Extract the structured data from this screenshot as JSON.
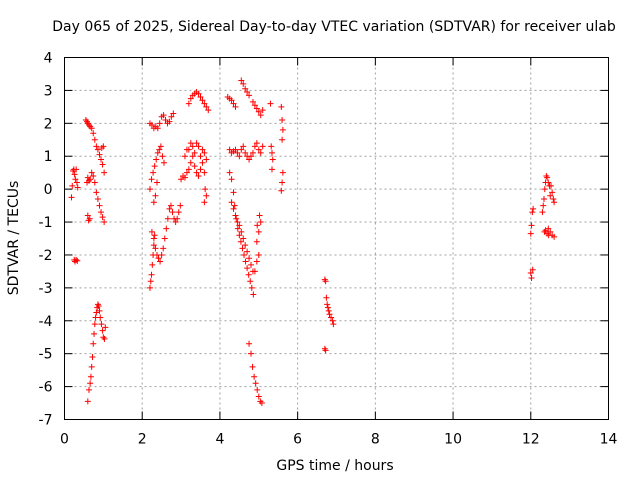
{
  "chart_data": {
    "type": "scatter",
    "title": "Day 065 of 2025, Sidereal Day-to-day VTEC variation (SDTVAR) for receiver ulab",
    "xlabel": "GPS time / hours",
    "ylabel": "SDTVAR / TECUs",
    "xlim": [
      0,
      14
    ],
    "ylim": [
      -7,
      4
    ],
    "xticks": [
      0,
      2,
      4,
      6,
      8,
      10,
      12,
      14
    ],
    "yticks": [
      -7,
      -6,
      -5,
      -4,
      -3,
      -2,
      -1,
      0,
      1,
      2,
      3,
      4
    ],
    "grid": true,
    "marker": "+",
    "series": [
      {
        "name": "SDTVAR",
        "color": "#ff0000",
        "points": [
          [
            0.18,
            -0.25
          ],
          [
            0.2,
            0.1
          ],
          [
            0.22,
            0.55
          ],
          [
            0.24,
            0.6
          ],
          [
            0.26,
            0.45
          ],
          [
            0.28,
            0.3
          ],
          [
            0.3,
            0.6
          ],
          [
            0.32,
            0.2
          ],
          [
            0.34,
            0.05
          ],
          [
            0.25,
            -2.15
          ],
          [
            0.27,
            -2.2
          ],
          [
            0.3,
            -2.15
          ],
          [
            0.33,
            -2.18
          ],
          [
            0.55,
            2.1
          ],
          [
            0.58,
            2.05
          ],
          [
            0.6,
            2.0
          ],
          [
            0.63,
            1.95
          ],
          [
            0.66,
            1.9
          ],
          [
            0.7,
            1.85
          ],
          [
            0.74,
            1.7
          ],
          [
            0.78,
            1.5
          ],
          [
            0.82,
            1.3
          ],
          [
            0.86,
            1.2
          ],
          [
            0.9,
            1.05
          ],
          [
            0.94,
            0.9
          ],
          [
            0.98,
            0.75
          ],
          [
            1.02,
            0.5
          ],
          [
            0.96,
            1.25
          ],
          [
            1.0,
            1.3
          ],
          [
            0.58,
            0.2
          ],
          [
            0.6,
            0.35
          ],
          [
            0.63,
            0.25
          ],
          [
            0.66,
            0.3
          ],
          [
            0.7,
            0.5
          ],
          [
            0.74,
            0.4
          ],
          [
            0.78,
            0.2
          ],
          [
            0.82,
            -0.1
          ],
          [
            0.86,
            -0.3
          ],
          [
            0.9,
            -0.5
          ],
          [
            0.94,
            -0.7
          ],
          [
            0.98,
            -0.85
          ],
          [
            1.02,
            -1.0
          ],
          [
            0.6,
            -0.8
          ],
          [
            0.62,
            -0.95
          ],
          [
            0.65,
            -0.9
          ],
          [
            0.6,
            -6.45
          ],
          [
            0.63,
            -6.1
          ],
          [
            0.66,
            -5.9
          ],
          [
            0.68,
            -5.7
          ],
          [
            0.7,
            -5.4
          ],
          [
            0.72,
            -5.1
          ],
          [
            0.74,
            -4.7
          ],
          [
            0.76,
            -4.4
          ],
          [
            0.78,
            -4.1
          ],
          [
            0.8,
            -3.9
          ],
          [
            0.82,
            -3.75
          ],
          [
            0.84,
            -3.6
          ],
          [
            0.86,
            -3.5
          ],
          [
            0.88,
            -3.55
          ],
          [
            0.9,
            -3.7
          ],
          [
            0.92,
            -3.9
          ],
          [
            0.95,
            -4.1
          ],
          [
            0.98,
            -4.3
          ],
          [
            1.0,
            -4.5
          ],
          [
            1.03,
            -4.55
          ],
          [
            1.05,
            -4.2
          ],
          [
            2.2,
            -3.0
          ],
          [
            2.22,
            -2.8
          ],
          [
            2.24,
            -2.6
          ],
          [
            2.26,
            -2.3
          ],
          [
            2.28,
            -2.0
          ],
          [
            2.3,
            -1.7
          ],
          [
            2.32,
            -1.4
          ],
          [
            2.25,
            -1.3
          ],
          [
            2.3,
            -1.5
          ],
          [
            2.34,
            -1.8
          ],
          [
            2.38,
            -2.0
          ],
          [
            2.42,
            -2.1
          ],
          [
            2.46,
            -2.2
          ],
          [
            2.5,
            -2.0
          ],
          [
            2.54,
            -1.8
          ],
          [
            2.58,
            -1.5
          ],
          [
            2.62,
            -1.2
          ],
          [
            2.66,
            -0.9
          ],
          [
            2.7,
            -0.6
          ],
          [
            2.74,
            -0.5
          ],
          [
            2.78,
            -0.7
          ],
          [
            2.82,
            -0.9
          ],
          [
            2.86,
            -1.0
          ],
          [
            2.9,
            -0.9
          ],
          [
            2.94,
            -0.7
          ],
          [
            2.98,
            -0.5
          ],
          [
            2.2,
            0.0
          ],
          [
            2.24,
            0.3
          ],
          [
            2.28,
            0.5
          ],
          [
            2.32,
            0.7
          ],
          [
            2.36,
            0.9
          ],
          [
            2.4,
            1.1
          ],
          [
            2.44,
            1.2
          ],
          [
            2.48,
            1.3
          ],
          [
            2.52,
            1.0
          ],
          [
            2.56,
            0.8
          ],
          [
            2.3,
            -0.4
          ],
          [
            2.34,
            -0.2
          ],
          [
            2.38,
            0.2
          ],
          [
            2.2,
            2.0
          ],
          [
            2.25,
            1.95
          ],
          [
            2.3,
            1.85
          ],
          [
            2.35,
            1.9
          ],
          [
            2.4,
            1.85
          ],
          [
            2.45,
            2.0
          ],
          [
            2.5,
            2.2
          ],
          [
            2.55,
            2.25
          ],
          [
            2.6,
            2.1
          ],
          [
            2.65,
            2.0
          ],
          [
            2.7,
            2.05
          ],
          [
            2.75,
            2.2
          ],
          [
            2.8,
            2.3
          ],
          [
            3.0,
            0.3
          ],
          [
            3.05,
            0.4
          ],
          [
            3.1,
            0.35
          ],
          [
            3.15,
            0.5
          ],
          [
            3.2,
            0.6
          ],
          [
            3.25,
            0.8
          ],
          [
            3.3,
            1.0
          ],
          [
            3.35,
            0.7
          ],
          [
            3.4,
            0.5
          ],
          [
            3.45,
            0.4
          ],
          [
            3.5,
            0.6
          ],
          [
            3.55,
            0.8
          ],
          [
            3.6,
            0.5
          ],
          [
            3.65,
            -0.2
          ],
          [
            3.6,
            -0.4
          ],
          [
            3.62,
            0.0
          ],
          [
            3.2,
            1.2
          ],
          [
            3.25,
            1.4
          ],
          [
            3.3,
            1.3
          ],
          [
            3.35,
            1.1
          ],
          [
            3.4,
            1.4
          ],
          [
            3.45,
            1.3
          ],
          [
            3.5,
            1.0
          ],
          [
            3.55,
            1.2
          ],
          [
            3.6,
            1.1
          ],
          [
            3.65,
            0.9
          ],
          [
            3.1,
            1.0
          ],
          [
            3.15,
            1.2
          ],
          [
            3.2,
            2.6
          ],
          [
            3.25,
            2.75
          ],
          [
            3.3,
            2.85
          ],
          [
            3.35,
            2.9
          ],
          [
            3.4,
            2.95
          ],
          [
            3.45,
            2.9
          ],
          [
            3.5,
            2.8
          ],
          [
            3.55,
            2.7
          ],
          [
            3.6,
            2.6
          ],
          [
            3.65,
            2.5
          ],
          [
            3.7,
            2.4
          ],
          [
            4.2,
            2.8
          ],
          [
            4.25,
            2.75
          ],
          [
            4.3,
            2.7
          ],
          [
            4.35,
            2.6
          ],
          [
            4.4,
            2.5
          ],
          [
            4.25,
            1.2
          ],
          [
            4.3,
            1.1
          ],
          [
            4.35,
            1.15
          ],
          [
            4.4,
            1.2
          ],
          [
            4.45,
            1.1
          ],
          [
            4.5,
            1.0
          ],
          [
            4.55,
            1.2
          ],
          [
            4.6,
            1.3
          ],
          [
            4.65,
            1.1
          ],
          [
            4.7,
            1.0
          ],
          [
            4.75,
            0.9
          ],
          [
            4.8,
            1.0
          ],
          [
            4.85,
            1.1
          ],
          [
            4.9,
            1.3
          ],
          [
            4.95,
            1.4
          ],
          [
            5.0,
            1.2
          ],
          [
            5.05,
            1.1
          ],
          [
            5.1,
            1.3
          ],
          [
            4.25,
            0.5
          ],
          [
            4.3,
            0.3
          ],
          [
            4.35,
            -0.1
          ],
          [
            4.38,
            -0.5
          ],
          [
            4.42,
            -0.9
          ],
          [
            4.46,
            -1.2
          ],
          [
            4.5,
            -1.4
          ],
          [
            4.54,
            -1.6
          ],
          [
            4.58,
            -1.8
          ],
          [
            4.62,
            -2.0
          ],
          [
            4.66,
            -2.2
          ],
          [
            4.7,
            -2.4
          ],
          [
            4.74,
            -2.6
          ],
          [
            4.78,
            -2.8
          ],
          [
            4.82,
            -3.0
          ],
          [
            4.86,
            -3.2
          ],
          [
            4.3,
            -0.4
          ],
          [
            4.35,
            -0.6
          ],
          [
            4.4,
            -0.8
          ],
          [
            4.45,
            -1.0
          ],
          [
            4.5,
            -1.1
          ],
          [
            4.55,
            -1.3
          ],
          [
            4.6,
            -1.5
          ],
          [
            4.65,
            -1.7
          ],
          [
            4.7,
            -1.9
          ],
          [
            4.75,
            -2.1
          ],
          [
            4.8,
            -2.3
          ],
          [
            4.85,
            -2.5
          ],
          [
            4.9,
            -2.5
          ],
          [
            4.95,
            -2.2
          ],
          [
            5.0,
            -2.0
          ],
          [
            4.95,
            -1.6
          ],
          [
            5.0,
            -1.3
          ],
          [
            5.05,
            -1.0
          ],
          [
            5.02,
            -0.8
          ],
          [
            4.96,
            -1.1
          ],
          [
            4.55,
            3.3
          ],
          [
            4.6,
            3.2
          ],
          [
            4.65,
            3.05
          ],
          [
            4.7,
            2.95
          ],
          [
            4.75,
            2.85
          ],
          [
            4.85,
            2.65
          ],
          [
            4.9,
            2.55
          ],
          [
            4.95,
            2.45
          ],
          [
            5.0,
            2.35
          ],
          [
            5.05,
            2.25
          ],
          [
            5.1,
            2.4
          ],
          [
            4.75,
            -4.7
          ],
          [
            4.8,
            -5.0
          ],
          [
            4.84,
            -5.4
          ],
          [
            4.88,
            -5.7
          ],
          [
            4.92,
            -5.9
          ],
          [
            4.96,
            -6.1
          ],
          [
            5.0,
            -6.3
          ],
          [
            5.04,
            -6.45
          ],
          [
            5.08,
            -6.5
          ],
          [
            5.3,
            2.6
          ],
          [
            5.32,
            1.3
          ],
          [
            5.34,
            1.1
          ],
          [
            5.36,
            0.9
          ],
          [
            5.34,
            0.6
          ],
          [
            5.58,
            2.5
          ],
          [
            5.6,
            2.1
          ],
          [
            5.62,
            1.8
          ],
          [
            5.6,
            1.5
          ],
          [
            5.62,
            0.5
          ],
          [
            5.6,
            0.2
          ],
          [
            5.58,
            -0.05
          ],
          [
            6.7,
            -2.75
          ],
          [
            6.72,
            -2.8
          ],
          [
            6.74,
            -3.3
          ],
          [
            6.76,
            -3.5
          ],
          [
            6.78,
            -3.6
          ],
          [
            6.8,
            -3.7
          ],
          [
            6.82,
            -3.8
          ],
          [
            6.86,
            -3.9
          ],
          [
            6.9,
            -4.0
          ],
          [
            6.92,
            -4.1
          ],
          [
            6.7,
            -4.85
          ],
          [
            6.72,
            -4.9
          ],
          [
            12.0,
            -2.55
          ],
          [
            12.02,
            -2.7
          ],
          [
            12.05,
            -2.45
          ],
          [
            12.0,
            -1.35
          ],
          [
            12.02,
            -1.1
          ],
          [
            12.04,
            -0.7
          ],
          [
            12.06,
            -0.6
          ],
          [
            12.3,
            -0.7
          ],
          [
            12.32,
            -0.5
          ],
          [
            12.34,
            -0.3
          ],
          [
            12.36,
            0.0
          ],
          [
            12.38,
            0.2
          ],
          [
            12.4,
            0.4
          ],
          [
            12.42,
            0.35
          ],
          [
            12.45,
            0.2
          ],
          [
            12.48,
            0.1
          ],
          [
            12.52,
            0.1
          ],
          [
            12.55,
            -0.1
          ],
          [
            12.58,
            -0.3
          ],
          [
            12.6,
            -0.4
          ],
          [
            12.5,
            -0.2
          ],
          [
            12.35,
            -1.3
          ],
          [
            12.38,
            -1.25
          ],
          [
            12.42,
            -1.35
          ],
          [
            12.46,
            -1.4
          ],
          [
            12.5,
            -1.3
          ],
          [
            12.55,
            -1.4
          ],
          [
            12.6,
            -1.45
          ],
          [
            12.45,
            -1.2
          ]
        ]
      }
    ]
  }
}
